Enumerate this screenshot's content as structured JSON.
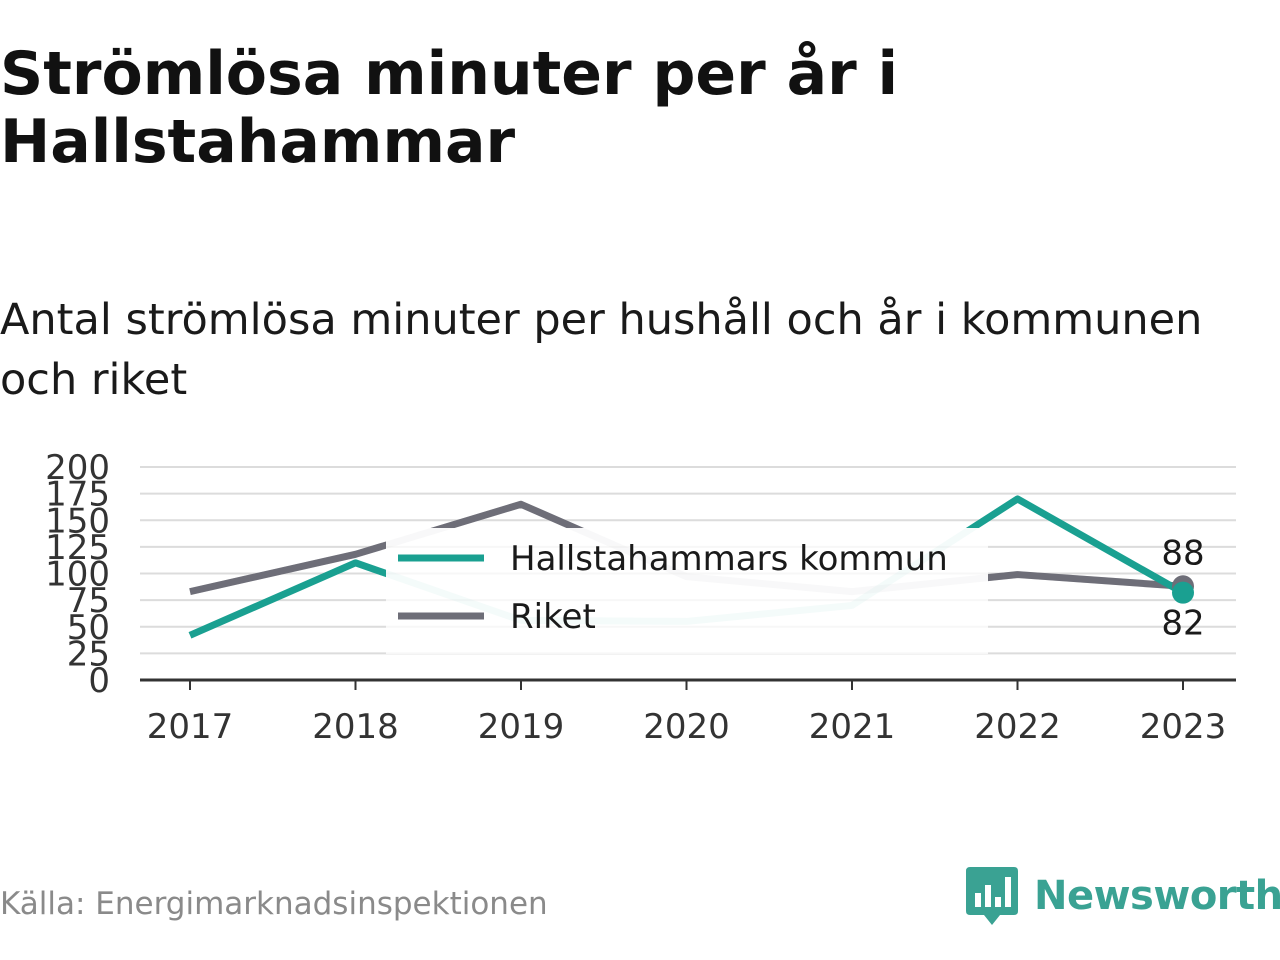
{
  "header": {
    "title": "Strömlösa minuter per år i Hallstahammar",
    "subtitle": "Antal strömlösa minuter per hushåll och år i kommunen och riket"
  },
  "footer": {
    "source": "Källa: Energimarknadsinspektionen",
    "brand": "Newsworthy",
    "brand_icon": "newsworthy-logo-icon"
  },
  "chart_data": {
    "type": "line",
    "title": "Strömlösa minuter per år i Hallstahammar",
    "subtitle": "Antal strömlösa minuter per hushåll och år i kommunen och riket",
    "xlabel": "",
    "ylabel": "",
    "categories": [
      "2017",
      "2018",
      "2019",
      "2020",
      "2021",
      "2022",
      "2023"
    ],
    "ylim": [
      0,
      200
    ],
    "yticks": [
      0,
      25,
      50,
      75,
      100,
      125,
      150,
      175,
      200
    ],
    "grid": true,
    "legend_position": "center",
    "series": [
      {
        "name": "Hallstahammars kommun",
        "color": "#1aa091",
        "values": [
          42,
          110,
          56,
          55,
          70,
          170,
          82
        ],
        "end_label": "82"
      },
      {
        "name": "Riket",
        "color": "#6e6e78",
        "values": [
          83,
          118,
          165,
          97,
          83,
          99,
          88
        ],
        "end_label": "88"
      }
    ]
  }
}
